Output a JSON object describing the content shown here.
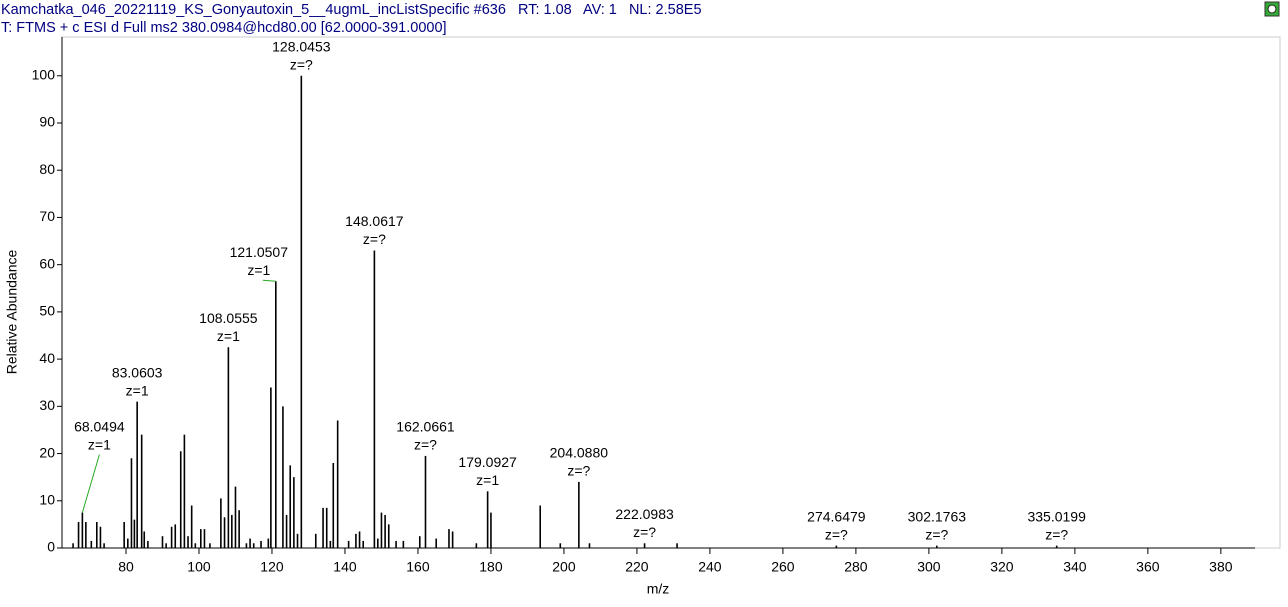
{
  "chart_data": {
    "type": "bar",
    "title": "Kamchatka_046_20221119_KS_Gonyautoxin_5__4ugmL_incListSpecific #636   RT: 1.08   AV: 1   NL: 2.58E5",
    "subtitle": "T: FTMS + c ESI d Full ms2 380.0984@hcd80.00 [62.0000-391.0000]",
    "x_label": "m/z",
    "y_label": "Relative Abundance",
    "xlim": [
      62,
      391
    ],
    "ylim": [
      0,
      108
    ],
    "xticks": [
      80,
      100,
      120,
      140,
      160,
      180,
      200,
      220,
      240,
      260,
      280,
      300,
      320,
      340,
      360,
      380
    ],
    "yticks": [
      0,
      10,
      20,
      30,
      40,
      50,
      60,
      70,
      80,
      90,
      100
    ],
    "series": [
      {
        "color": "#000000",
        "x": [
          65.5,
          67,
          68.0494,
          69,
          70.5,
          72,
          73,
          74,
          79.5,
          80.5,
          81.5,
          82.3,
          83.0603,
          84.3,
          85,
          86,
          90,
          91,
          92.5,
          93.5,
          95,
          96,
          97,
          98,
          99,
          100.5,
          101.5,
          103,
          106,
          107,
          108.0555,
          109,
          110,
          111,
          113,
          114,
          115,
          117,
          119,
          119.7,
          121.0507,
          123,
          124,
          125,
          126,
          127,
          128.0453,
          132,
          134,
          135,
          136,
          136.8,
          138,
          141,
          143,
          144,
          145,
          148.0617,
          149,
          150,
          151,
          152,
          154,
          156,
          160.5,
          162.0661,
          165,
          168.5,
          169.5,
          176,
          179.0927,
          180,
          193.5,
          199,
          204.088,
          207,
          222.0983,
          231,
          274.6479,
          302.1763,
          335.0199
        ],
        "values": [
          1,
          5.5,
          7.5,
          5.5,
          1.5,
          5.5,
          4.5,
          1,
          5.5,
          2,
          19,
          6,
          31,
          24,
          3.5,
          1.5,
          2.5,
          1,
          4.5,
          5,
          20.5,
          24,
          2.5,
          9,
          1,
          4,
          4,
          1,
          10.5,
          6.5,
          42.5,
          7,
          13,
          8,
          1,
          2,
          1,
          1.5,
          2,
          34,
          56.5,
          30,
          7,
          17.5,
          15,
          3,
          100,
          3,
          8.5,
          8.5,
          1.5,
          18,
          27,
          1.5,
          3,
          3.5,
          1.5,
          63,
          2,
          7.5,
          7,
          5,
          1.5,
          1.5,
          2.5,
          19.5,
          2,
          4,
          3.5,
          1,
          12,
          7.5,
          9,
          1,
          14,
          1,
          1,
          1,
          0.5,
          0.5,
          0.5
        ],
        "x_labels": [
          null,
          null,
          "68.0494",
          null,
          null,
          null,
          null,
          null,
          null,
          null,
          null,
          null,
          "83.0603",
          null,
          null,
          null,
          null,
          null,
          null,
          null,
          null,
          null,
          null,
          null,
          null,
          null,
          null,
          null,
          null,
          null,
          "108.0555",
          null,
          null,
          null,
          null,
          null,
          null,
          null,
          null,
          null,
          "121.0507",
          null,
          null,
          null,
          null,
          null,
          "128.0453",
          null,
          null,
          null,
          null,
          null,
          null,
          null,
          null,
          null,
          null,
          "148.0617",
          null,
          null,
          null,
          null,
          null,
          null,
          null,
          "162.0661",
          null,
          null,
          null,
          null,
          "179.0927",
          null,
          null,
          null,
          "204.0880",
          null,
          "222.0983",
          null,
          "274.6479",
          "302.1763",
          "335.0199"
        ],
        "charges": [
          null,
          null,
          "z=1",
          null,
          null,
          null,
          null,
          null,
          null,
          null,
          null,
          null,
          "z=1",
          null,
          null,
          null,
          null,
          null,
          null,
          null,
          null,
          null,
          null,
          null,
          null,
          null,
          null,
          null,
          null,
          null,
          "z=1",
          null,
          null,
          null,
          null,
          null,
          null,
          null,
          null,
          null,
          "z=1",
          null,
          null,
          null,
          null,
          null,
          "z=?",
          null,
          null,
          null,
          null,
          null,
          null,
          null,
          null,
          null,
          null,
          "z=?",
          null,
          null,
          null,
          null,
          null,
          null,
          null,
          "z=?",
          null,
          null,
          null,
          null,
          "z=1",
          null,
          null,
          null,
          "z=?",
          null,
          "z=?",
          null,
          "z=?",
          "z=?",
          "z=?"
        ]
      }
    ]
  }
}
